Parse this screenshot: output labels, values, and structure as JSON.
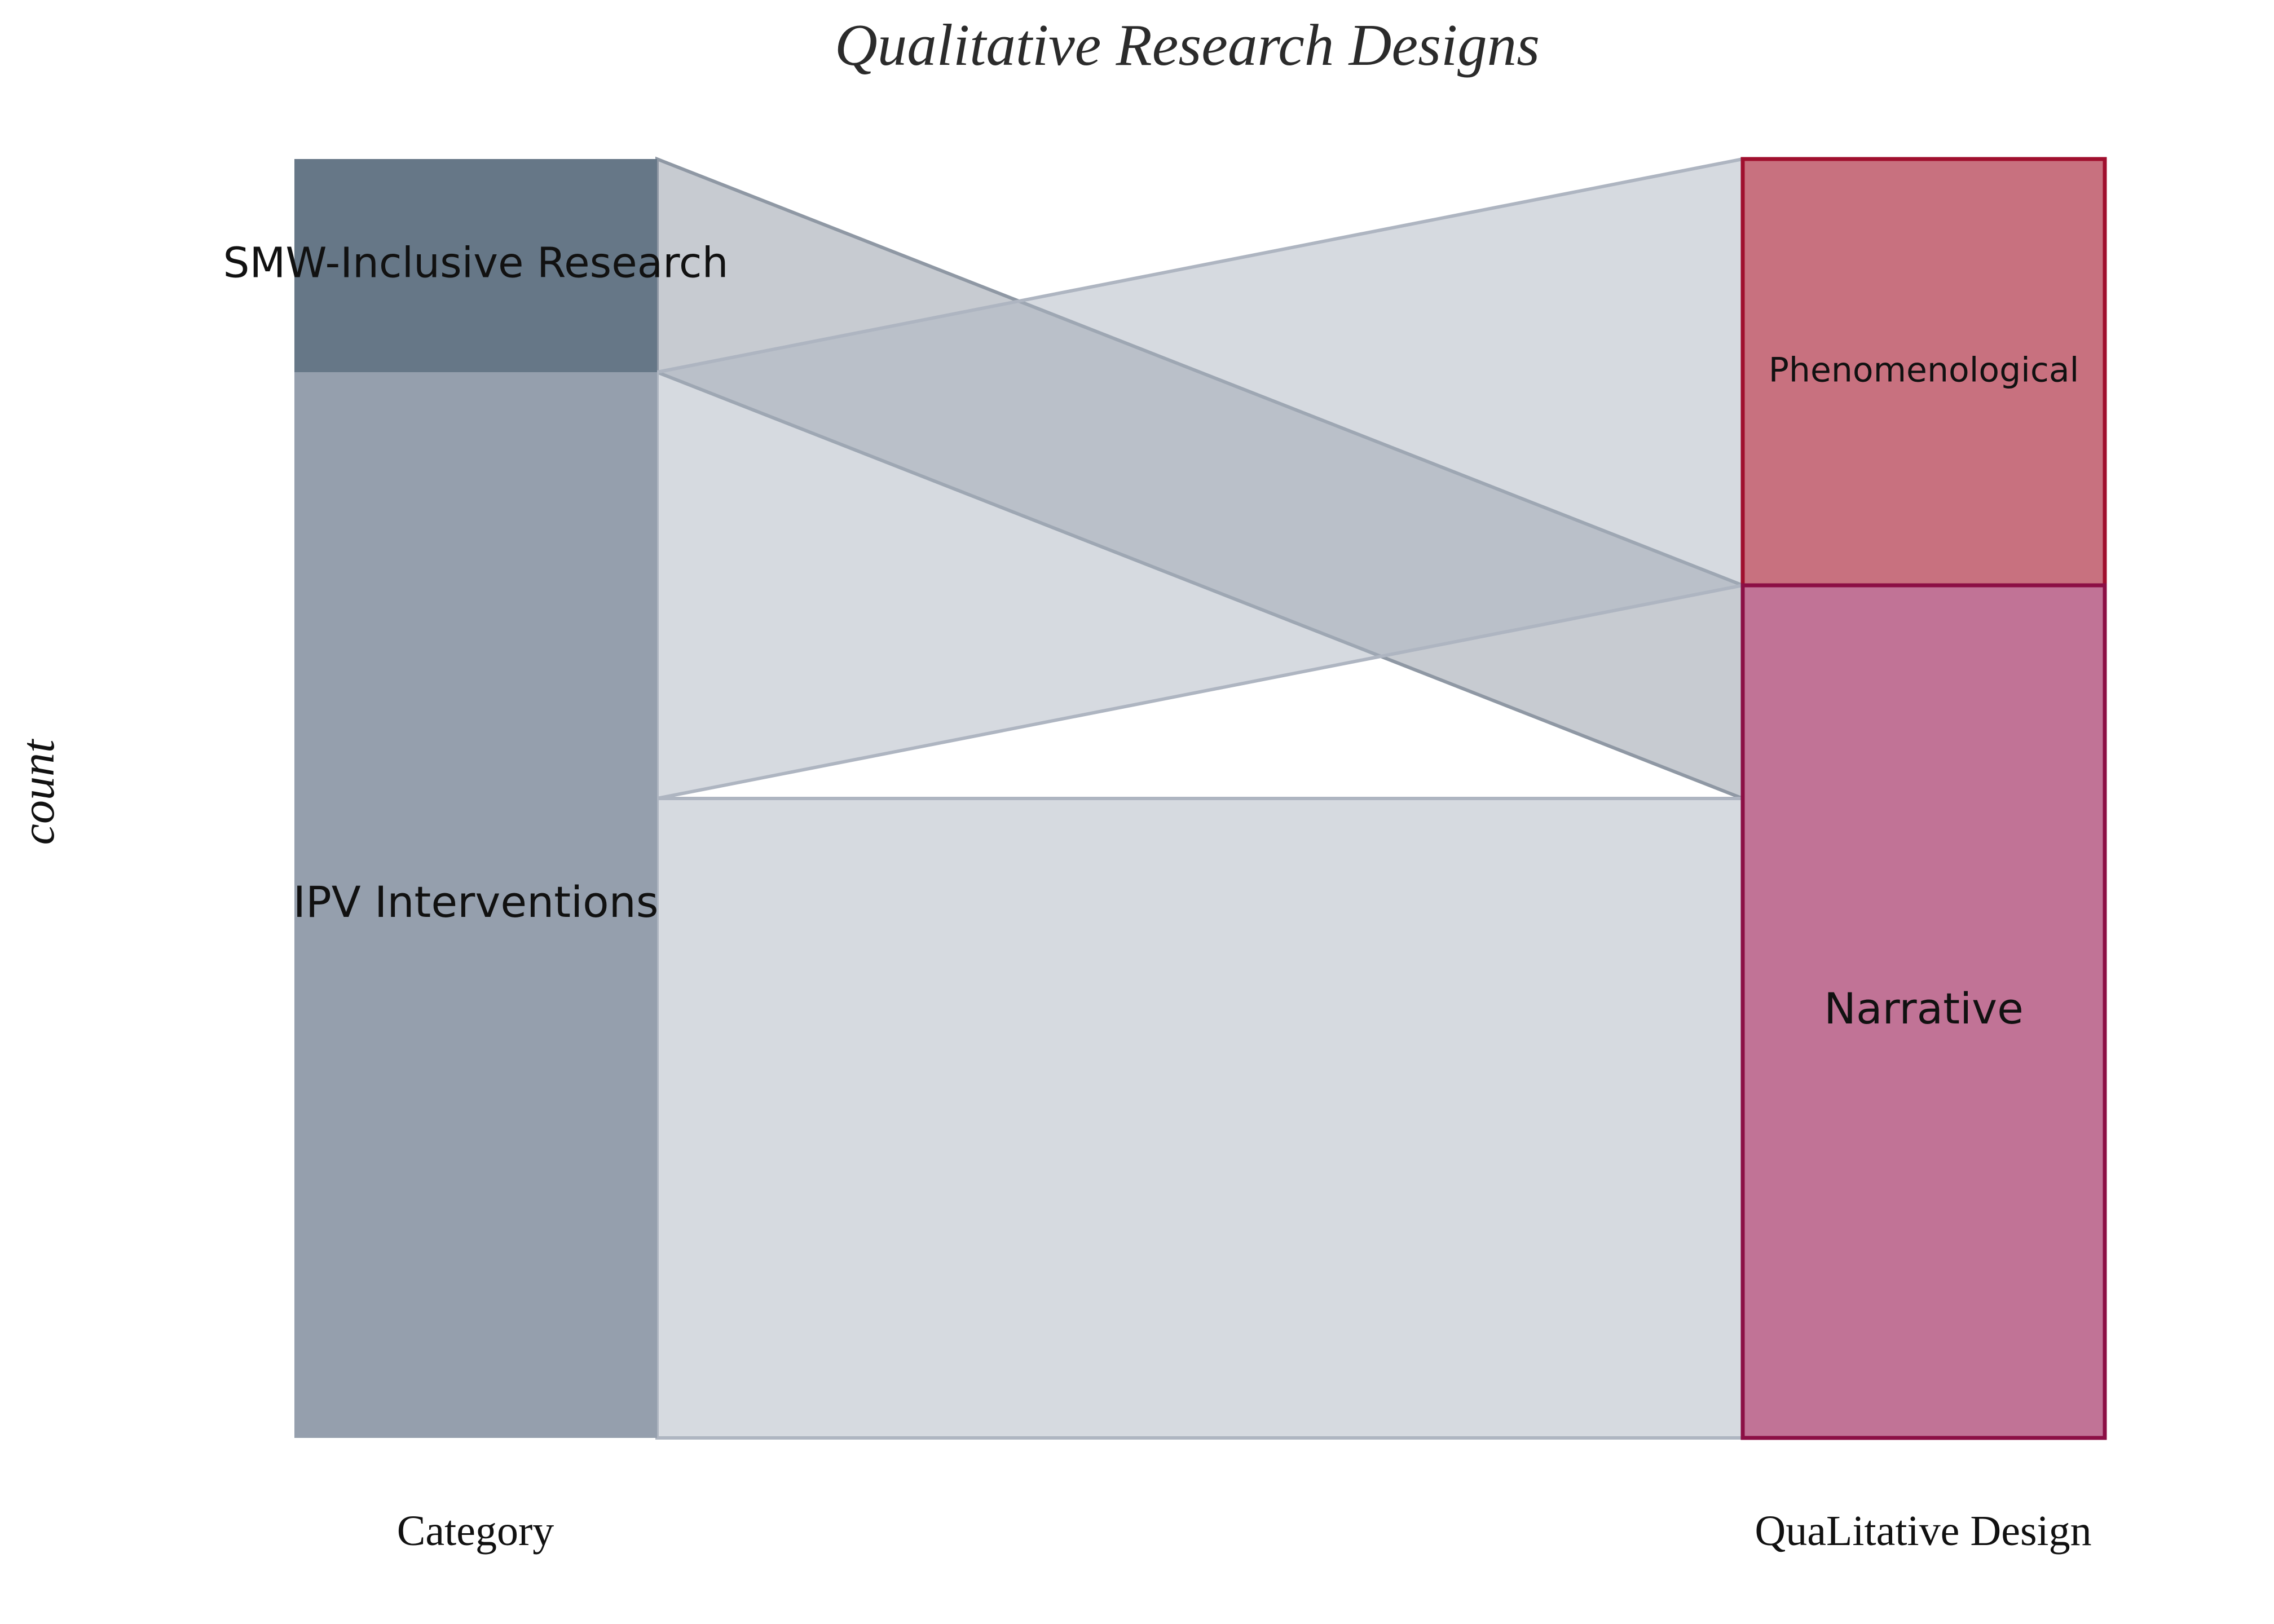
{
  "chart_data": {
    "type": "alluvial",
    "title": "Qualitative Research Designs",
    "ylabel": "count",
    "axes": [
      "Category",
      "QuaLitative Design"
    ],
    "axis_labels": {
      "left": "Category",
      "right": "QuaLitative Design"
    },
    "left_nodes": [
      {
        "name": "SMW-Inclusive Research",
        "value": 1,
        "color": "#667787"
      },
      {
        "name": "IPV Interventions",
        "value": 5,
        "color": "#959fad"
      }
    ],
    "right_nodes": [
      {
        "name": "Phenomenological",
        "value": 2,
        "color": "#c8717f",
        "stroke": "#a00f2e"
      },
      {
        "name": "Narrative",
        "value": 4,
        "color": "#c17396",
        "stroke": "#8c0f45"
      }
    ],
    "flows": [
      {
        "source": "SMW-Inclusive Research",
        "target": "Narrative",
        "value": 1
      },
      {
        "source": "IPV Interventions",
        "target": "Phenomenological",
        "value": 2
      },
      {
        "source": "IPV Interventions",
        "target": "Narrative",
        "value": 3
      }
    ],
    "flow_colors": {
      "SMW-Inclusive Research": "#8f98a4",
      "IPV Interventions": "#aeb5c1"
    },
    "total": 6
  }
}
